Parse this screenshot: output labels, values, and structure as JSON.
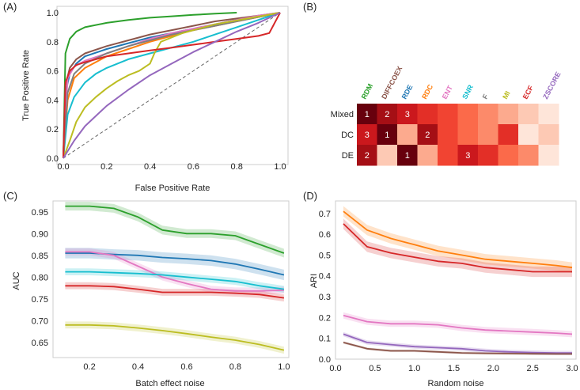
{
  "panels": {
    "a": "(A)",
    "b": "(B)",
    "c": "(C)",
    "d": "(D)"
  },
  "chart_data": [
    {
      "id": "roc",
      "type": "line",
      "title": "",
      "xlabel": "False Positive Rate",
      "ylabel": "True Positive Rate",
      "xlim": [
        0,
        1
      ],
      "ylim": [
        0,
        1
      ],
      "xticks": [
        0.0,
        0.2,
        0.4,
        0.6,
        0.8,
        1.0
      ],
      "yticks": [
        0.0,
        0.2,
        0.4,
        0.6,
        0.8,
        1.0
      ],
      "xtick_labels": [
        "0.0",
        "0.2",
        "0.4",
        "0.6",
        "0.8",
        "1.0"
      ],
      "ytick_labels": [
        "0.0",
        "0.2",
        "0.4",
        "0.6",
        "0.8",
        "1.0"
      ],
      "series": [
        {
          "name": "RDM",
          "color": "#2ca02c",
          "x": [
            0,
            0.01,
            0.03,
            0.06,
            0.1,
            0.2,
            0.3,
            0.4,
            0.5,
            0.6,
            0.7,
            0.8
          ],
          "y": [
            0,
            0.72,
            0.82,
            0.87,
            0.9,
            0.93,
            0.95,
            0.965,
            0.975,
            0.985,
            0.993,
            1.0
          ]
        },
        {
          "name": "DIFFCOEX",
          "color": "#8c564b",
          "x": [
            0,
            0.01,
            0.03,
            0.06,
            0.1,
            0.2,
            0.3,
            0.4,
            0.5,
            0.6,
            0.7,
            0.8,
            0.9,
            1.0
          ],
          "y": [
            0,
            0.5,
            0.62,
            0.68,
            0.72,
            0.77,
            0.81,
            0.85,
            0.88,
            0.91,
            0.94,
            0.96,
            0.98,
            1.0
          ]
        },
        {
          "name": "RDE",
          "color": "#1f77b4",
          "x": [
            0,
            0.01,
            0.03,
            0.06,
            0.1,
            0.2,
            0.3,
            0.4,
            0.5,
            0.6,
            0.7,
            0.8,
            0.9,
            1.0
          ],
          "y": [
            0,
            0.45,
            0.58,
            0.65,
            0.7,
            0.75,
            0.79,
            0.83,
            0.86,
            0.89,
            0.92,
            0.95,
            0.97,
            1.0
          ]
        },
        {
          "name": "RDC",
          "color": "#ff7f0e",
          "x": [
            0,
            0.02,
            0.05,
            0.1,
            0.2,
            0.3,
            0.4,
            0.5,
            0.6,
            0.7,
            0.8,
            0.9,
            1.0
          ],
          "y": [
            0,
            0.4,
            0.55,
            0.62,
            0.7,
            0.75,
            0.8,
            0.84,
            0.88,
            0.91,
            0.94,
            0.97,
            1.0
          ]
        },
        {
          "name": "ENT",
          "color": "#e377c2",
          "x": [
            0,
            0.02,
            0.05,
            0.1,
            0.2,
            0.3,
            0.4,
            0.5,
            0.6,
            0.7,
            0.8,
            0.9,
            1.0
          ],
          "y": [
            0,
            0.55,
            0.63,
            0.67,
            0.72,
            0.77,
            0.82,
            0.86,
            0.89,
            0.92,
            0.95,
            0.98,
            1.0
          ]
        },
        {
          "name": "SNR",
          "color": "#17becf",
          "x": [
            0,
            0.02,
            0.05,
            0.1,
            0.15,
            0.2,
            0.3,
            0.4,
            0.5,
            0.6,
            0.7,
            0.8,
            0.9,
            1.0
          ],
          "y": [
            0,
            0.3,
            0.42,
            0.52,
            0.58,
            0.62,
            0.68,
            0.72,
            0.76,
            0.8,
            0.85,
            0.9,
            0.95,
            1.0
          ]
        },
        {
          "name": "F",
          "color": "#7f7f7f",
          "x": [
            0,
            0.02,
            0.05,
            0.1,
            0.2,
            0.3,
            0.4,
            0.5,
            0.6,
            0.7,
            0.8,
            0.9,
            1.0
          ],
          "y": [
            0,
            0.45,
            0.58,
            0.65,
            0.72,
            0.77,
            0.81,
            0.85,
            0.88,
            0.91,
            0.94,
            0.97,
            1.0
          ]
        },
        {
          "name": "MI",
          "color": "#bcbd22",
          "x": [
            0,
            0.03,
            0.06,
            0.1,
            0.15,
            0.2,
            0.25,
            0.3,
            0.35,
            0.4,
            0.42,
            0.45,
            0.55,
            0.7,
            0.85,
            1.0
          ],
          "y": [
            0,
            0.12,
            0.25,
            0.35,
            0.42,
            0.48,
            0.53,
            0.57,
            0.6,
            0.65,
            0.72,
            0.8,
            0.86,
            0.92,
            0.96,
            1.0
          ]
        },
        {
          "name": "ECF",
          "color": "#d62728",
          "x": [
            0,
            0.01,
            0.03,
            0.06,
            0.1,
            0.2,
            0.3,
            0.4,
            0.5,
            0.6,
            0.7,
            0.8,
            0.9,
            0.95,
            1.0
          ],
          "y": [
            0,
            0.52,
            0.6,
            0.64,
            0.66,
            0.7,
            0.72,
            0.74,
            0.76,
            0.78,
            0.8,
            0.82,
            0.84,
            0.86,
            1.0
          ]
        },
        {
          "name": "ZSCORE",
          "color": "#9467bd",
          "x": [
            0,
            0.05,
            0.1,
            0.2,
            0.3,
            0.4,
            0.5,
            0.6,
            0.7,
            0.8,
            0.9,
            1.0
          ],
          "y": [
            0,
            0.12,
            0.22,
            0.36,
            0.47,
            0.57,
            0.65,
            0.73,
            0.8,
            0.87,
            0.93,
            1.0
          ]
        }
      ],
      "reference_line": {
        "x": [
          0,
          1
        ],
        "y": [
          0,
          1
        ],
        "color": "#666666"
      }
    },
    {
      "id": "heatmap",
      "type": "heatmap",
      "columns": [
        "RDM",
        "DIFFCOEX",
        "RDE",
        "RDC",
        "ENT",
        "SNR",
        "F",
        "MI",
        "ECF",
        "ZSCORE"
      ],
      "column_colors": [
        "#2ca02c",
        "#8c564b",
        "#1f77b4",
        "#ff7f0e",
        "#e377c2",
        "#17becf",
        "#7f7f7f",
        "#bcbd22",
        "#d62728",
        "#9467bd"
      ],
      "rows": [
        "Mixed",
        "DC",
        "DE"
      ],
      "ranks": [
        [
          1,
          2,
          3,
          4,
          5,
          6,
          7,
          8,
          9,
          10
        ],
        [
          3,
          1,
          8,
          2,
          5,
          6,
          7,
          4,
          10,
          9
        ],
        [
          2,
          9,
          1,
          8,
          5,
          3,
          4,
          6,
          7,
          10
        ]
      ],
      "cell_labels": [
        [
          "1",
          "2",
          "3",
          "",
          "",
          "",
          "",
          "",
          "",
          ""
        ],
        [
          "3",
          "1",
          "",
          "2",
          "",
          "",
          "",
          "",
          "",
          ""
        ],
        [
          "2",
          "",
          "1",
          "",
          "",
          "3",
          "",
          "",
          "",
          ""
        ]
      ]
    },
    {
      "id": "batch",
      "type": "line",
      "xlabel": "Batch effect noise",
      "ylabel": "AUC",
      "xlim": [
        0.05,
        1.02
      ],
      "ylim": [
        0.615,
        0.975
      ],
      "xticks": [
        0.2,
        0.4,
        0.6,
        0.8,
        1.0
      ],
      "yticks": [
        0.65,
        0.7,
        0.75,
        0.8,
        0.85,
        0.9,
        0.95
      ],
      "xtick_labels": [
        "0.2",
        "0.4",
        "0.6",
        "0.8",
        "1.0"
      ],
      "ytick_labels": [
        "0.65",
        "0.70",
        "0.75",
        "0.80",
        "0.85",
        "0.90",
        "0.95"
      ],
      "x": [
        0.1,
        0.2,
        0.3,
        0.4,
        0.5,
        0.6,
        0.7,
        0.8,
        0.9,
        1.0
      ],
      "series": [
        {
          "name": "RDM",
          "color": "#2ca02c",
          "values": [
            0.963,
            0.963,
            0.958,
            0.938,
            0.908,
            0.9,
            0.9,
            0.895,
            0.875,
            0.855
          ],
          "band": 0.01
        },
        {
          "name": "RDE",
          "color": "#1f77b4",
          "values": [
            0.855,
            0.855,
            0.852,
            0.85,
            0.845,
            0.842,
            0.838,
            0.83,
            0.818,
            0.805
          ],
          "band": 0.012
        },
        {
          "name": "ENT",
          "color": "#e377c2",
          "values": [
            0.858,
            0.858,
            0.85,
            0.825,
            0.8,
            0.785,
            0.772,
            0.768,
            0.768,
            0.77
          ],
          "band": 0.008
        },
        {
          "name": "SNR",
          "color": "#17becf",
          "values": [
            0.812,
            0.812,
            0.81,
            0.808,
            0.805,
            0.8,
            0.795,
            0.79,
            0.78,
            0.772
          ],
          "band": 0.008
        },
        {
          "name": "ECF",
          "color": "#d62728",
          "values": [
            0.78,
            0.78,
            0.778,
            0.772,
            0.765,
            0.765,
            0.765,
            0.763,
            0.76,
            0.752
          ],
          "band": 0.008
        },
        {
          "name": "MI",
          "color": "#bcbd22",
          "values": [
            0.69,
            0.69,
            0.688,
            0.683,
            0.677,
            0.67,
            0.662,
            0.655,
            0.645,
            0.632
          ],
          "band": 0.008
        }
      ]
    },
    {
      "id": "random",
      "type": "line",
      "xlabel": "Random noise",
      "ylabel": "ARI",
      "xlim": [
        0,
        3.05
      ],
      "ylim": [
        0,
        0.76
      ],
      "xticks": [
        0.0,
        0.5,
        1.0,
        1.5,
        2.0,
        2.5,
        3.0
      ],
      "yticks": [
        0.0,
        0.1,
        0.2,
        0.3,
        0.4,
        0.5,
        0.6,
        0.7
      ],
      "xtick_labels": [
        "0.0",
        "0.5",
        "1.0",
        "1.5",
        "2.0",
        "2.5",
        "3.0"
      ],
      "ytick_labels": [
        "0.0",
        "0.1",
        "0.2",
        "0.3",
        "0.4",
        "0.5",
        "0.6",
        "0.7"
      ],
      "x": [
        0.1,
        0.4,
        0.7,
        1.0,
        1.3,
        1.6,
        1.9,
        2.2,
        2.5,
        2.8,
        3.0
      ],
      "series": [
        {
          "name": "RDC",
          "color": "#ff7f0e",
          "values": [
            0.71,
            0.62,
            0.58,
            0.55,
            0.52,
            0.5,
            0.48,
            0.47,
            0.46,
            0.45,
            0.44
          ],
          "band": 0.025
        },
        {
          "name": "ECF",
          "color": "#d62728",
          "values": [
            0.65,
            0.54,
            0.51,
            0.49,
            0.47,
            0.46,
            0.44,
            0.43,
            0.42,
            0.42,
            0.42
          ],
          "band": 0.025
        },
        {
          "name": "ENT",
          "color": "#e377c2",
          "values": [
            0.21,
            0.18,
            0.17,
            0.17,
            0.165,
            0.15,
            0.14,
            0.135,
            0.13,
            0.125,
            0.12
          ],
          "band": 0.015
        },
        {
          "name": "ZSCORE",
          "color": "#9467bd",
          "values": [
            0.12,
            0.08,
            0.07,
            0.06,
            0.055,
            0.05,
            0.04,
            0.035,
            0.032,
            0.03,
            0.03
          ],
          "band": 0.01
        },
        {
          "name": "DIFFCOEX",
          "color": "#8c564b",
          "values": [
            0.08,
            0.05,
            0.04,
            0.04,
            0.035,
            0.03,
            0.028,
            0.027,
            0.026,
            0.025,
            0.025
          ],
          "band": 0.006
        }
      ]
    }
  ]
}
